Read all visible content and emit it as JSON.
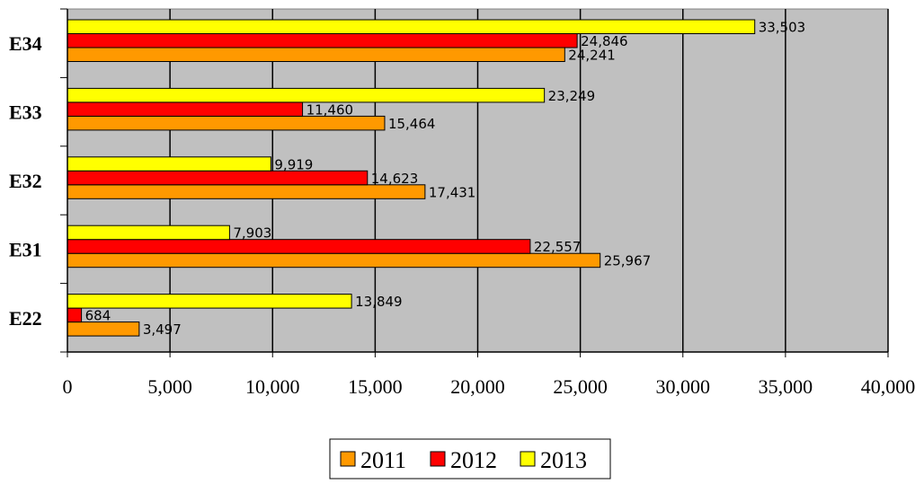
{
  "chart_data": {
    "type": "bar",
    "orientation": "horizontal",
    "categories": [
      "E22",
      "E31",
      "E32",
      "E33",
      "E34"
    ],
    "series": [
      {
        "name": "2011",
        "color": "#FF9900",
        "values": [
          3497,
          25967,
          17431,
          15464,
          24241
        ]
      },
      {
        "name": "2012",
        "color": "#FF0000",
        "values": [
          684,
          22557,
          14623,
          11460,
          24846
        ]
      },
      {
        "name": "2013",
        "color": "#FFFF00",
        "values": [
          13849,
          7903,
          9919,
          23249,
          33503
        ]
      }
    ],
    "x_ticks": [
      0,
      5000,
      10000,
      15000,
      20000,
      25000,
      30000,
      35000,
      40000
    ],
    "xlim": [
      0,
      40000
    ],
    "plot_background": "#C0C0C0",
    "grid": "vertical",
    "legend_position": "bottom",
    "title": "",
    "xlabel": "",
    "ylabel": ""
  }
}
